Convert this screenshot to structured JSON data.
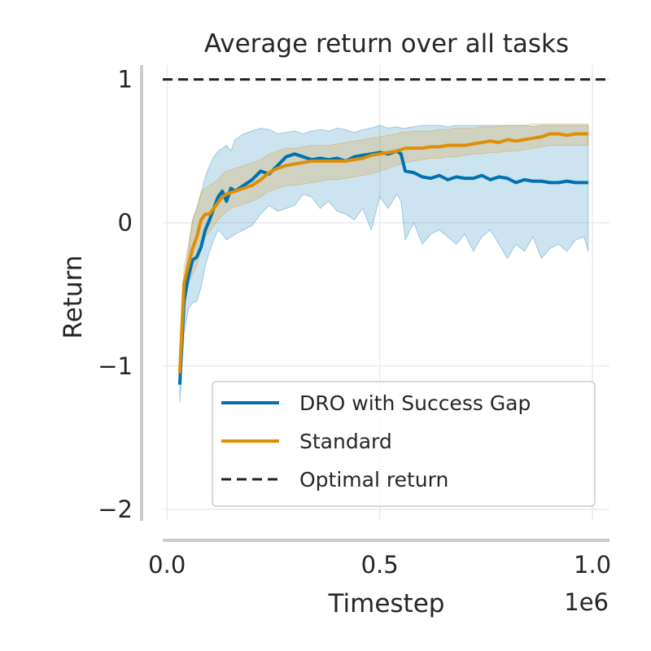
{
  "chart_data": {
    "type": "line",
    "title": "Average return over all tasks",
    "xlabel": "Timestep",
    "ylabel": "Return",
    "x_offset_label": "1e6",
    "xlim": [
      -0.01,
      1.04
    ],
    "ylim": [
      -2.08,
      1.1
    ],
    "xticks": [
      0.0,
      0.5,
      1.0
    ],
    "xtick_labels": [
      "0.0",
      "0.5",
      "1.0"
    ],
    "yticks": [
      1,
      0,
      -1,
      -2
    ],
    "ytick_labels": [
      "1",
      "0",
      "−1",
      "−2"
    ],
    "grid": true,
    "legend_position": "lower right",
    "reference_line": {
      "name": "Optimal return",
      "y": 1.0,
      "style": "dashed",
      "color": "#222222"
    },
    "series": [
      {
        "name": "DRO with Success Gap",
        "color": "#0072b2",
        "x": [
          0.03,
          0.04,
          0.05,
          0.06,
          0.07,
          0.08,
          0.09,
          0.1,
          0.11,
          0.12,
          0.13,
          0.14,
          0.15,
          0.16,
          0.18,
          0.2,
          0.22,
          0.24,
          0.26,
          0.28,
          0.3,
          0.32,
          0.34,
          0.36,
          0.38,
          0.4,
          0.42,
          0.44,
          0.46,
          0.48,
          0.5,
          0.52,
          0.54,
          0.55,
          0.56,
          0.58,
          0.6,
          0.62,
          0.64,
          0.66,
          0.68,
          0.7,
          0.72,
          0.74,
          0.76,
          0.78,
          0.8,
          0.82,
          0.84,
          0.86,
          0.88,
          0.9,
          0.92,
          0.94,
          0.96,
          0.98,
          0.99
        ],
        "y": [
          -1.13,
          -0.55,
          -0.38,
          -0.26,
          -0.24,
          -0.17,
          -0.05,
          0.02,
          0.1,
          0.18,
          0.22,
          0.15,
          0.24,
          0.22,
          0.26,
          0.3,
          0.36,
          0.34,
          0.4,
          0.46,
          0.48,
          0.46,
          0.44,
          0.45,
          0.44,
          0.45,
          0.43,
          0.46,
          0.47,
          0.48,
          0.49,
          0.48,
          0.5,
          0.48,
          0.36,
          0.35,
          0.32,
          0.31,
          0.33,
          0.3,
          0.32,
          0.31,
          0.31,
          0.33,
          0.3,
          0.32,
          0.31,
          0.28,
          0.3,
          0.29,
          0.29,
          0.28,
          0.28,
          0.29,
          0.28,
          0.28,
          0.28
        ],
        "lower": [
          -1.26,
          -0.78,
          -0.6,
          -0.56,
          -0.55,
          -0.45,
          -0.3,
          -0.2,
          -0.12,
          -0.05,
          -0.08,
          -0.12,
          -0.1,
          -0.08,
          -0.05,
          -0.02,
          0.06,
          0.12,
          0.08,
          0.1,
          0.12,
          0.2,
          0.18,
          0.1,
          0.15,
          0.08,
          0.06,
          0.02,
          0.1,
          -0.05,
          0.18,
          0.1,
          0.2,
          0.15,
          -0.12,
          0.0,
          -0.15,
          -0.08,
          -0.05,
          -0.1,
          -0.15,
          -0.08,
          -0.2,
          -0.1,
          -0.05,
          -0.15,
          -0.25,
          -0.15,
          -0.2,
          -0.1,
          -0.25,
          -0.18,
          -0.15,
          -0.2,
          -0.12,
          -0.1,
          -0.2
        ],
        "upper": [
          -1.02,
          -0.4,
          -0.2,
          0.02,
          0.1,
          0.2,
          0.32,
          0.4,
          0.46,
          0.5,
          0.52,
          0.54,
          0.5,
          0.58,
          0.62,
          0.64,
          0.66,
          0.65,
          0.62,
          0.63,
          0.64,
          0.62,
          0.64,
          0.65,
          0.64,
          0.66,
          0.65,
          0.63,
          0.65,
          0.66,
          0.68,
          0.66,
          0.67,
          0.66,
          0.66,
          0.67,
          0.68,
          0.68,
          0.68,
          0.67,
          0.68,
          0.68,
          0.68,
          0.68,
          0.68,
          0.68,
          0.68,
          0.68,
          0.68,
          0.67,
          0.68,
          0.68,
          0.68,
          0.68,
          0.68,
          0.68,
          0.68
        ]
      },
      {
        "name": "Standard",
        "color": "#de8f05",
        "x": [
          0.03,
          0.04,
          0.05,
          0.06,
          0.07,
          0.08,
          0.09,
          0.1,
          0.11,
          0.12,
          0.13,
          0.14,
          0.15,
          0.16,
          0.18,
          0.2,
          0.22,
          0.24,
          0.26,
          0.28,
          0.3,
          0.32,
          0.34,
          0.36,
          0.38,
          0.4,
          0.42,
          0.44,
          0.46,
          0.48,
          0.5,
          0.52,
          0.54,
          0.55,
          0.56,
          0.58,
          0.6,
          0.62,
          0.64,
          0.66,
          0.68,
          0.7,
          0.72,
          0.74,
          0.76,
          0.78,
          0.8,
          0.82,
          0.84,
          0.86,
          0.88,
          0.9,
          0.92,
          0.94,
          0.96,
          0.98,
          0.99
        ],
        "y": [
          -1.05,
          -0.42,
          -0.3,
          -0.18,
          -0.1,
          0.02,
          0.06,
          0.06,
          0.1,
          0.14,
          0.18,
          0.2,
          0.21,
          0.22,
          0.24,
          0.26,
          0.3,
          0.35,
          0.38,
          0.4,
          0.41,
          0.42,
          0.43,
          0.43,
          0.43,
          0.43,
          0.43,
          0.44,
          0.45,
          0.47,
          0.48,
          0.49,
          0.5,
          0.51,
          0.52,
          0.52,
          0.52,
          0.53,
          0.53,
          0.54,
          0.54,
          0.54,
          0.55,
          0.56,
          0.57,
          0.56,
          0.58,
          0.57,
          0.58,
          0.59,
          0.6,
          0.62,
          0.62,
          0.61,
          0.62,
          0.62,
          0.62
        ],
        "lower": [
          -1.1,
          -0.5,
          -0.42,
          -0.36,
          -0.3,
          -0.18,
          -0.1,
          -0.06,
          -0.02,
          0.02,
          0.05,
          0.08,
          0.1,
          0.11,
          0.13,
          0.15,
          0.18,
          0.22,
          0.24,
          0.26,
          0.26,
          0.27,
          0.28,
          0.29,
          0.3,
          0.3,
          0.31,
          0.32,
          0.33,
          0.34,
          0.36,
          0.38,
          0.4,
          0.41,
          0.42,
          0.43,
          0.44,
          0.45,
          0.45,
          0.46,
          0.46,
          0.47,
          0.48,
          0.48,
          0.49,
          0.49,
          0.5,
          0.5,
          0.51,
          0.52,
          0.53,
          0.54,
          0.54,
          0.54,
          0.54,
          0.54,
          0.54
        ],
        "upper": [
          -1.0,
          -0.3,
          -0.16,
          0.02,
          0.1,
          0.22,
          0.24,
          0.26,
          0.28,
          0.3,
          0.34,
          0.36,
          0.37,
          0.38,
          0.4,
          0.42,
          0.44,
          0.48,
          0.5,
          0.52,
          0.52,
          0.53,
          0.54,
          0.54,
          0.54,
          0.55,
          0.56,
          0.57,
          0.58,
          0.59,
          0.6,
          0.61,
          0.62,
          0.63,
          0.63,
          0.64,
          0.64,
          0.64,
          0.65,
          0.65,
          0.66,
          0.66,
          0.66,
          0.67,
          0.67,
          0.67,
          0.68,
          0.68,
          0.68,
          0.69,
          0.69,
          0.69,
          0.69,
          0.69,
          0.69,
          0.69,
          0.69
        ]
      }
    ]
  }
}
